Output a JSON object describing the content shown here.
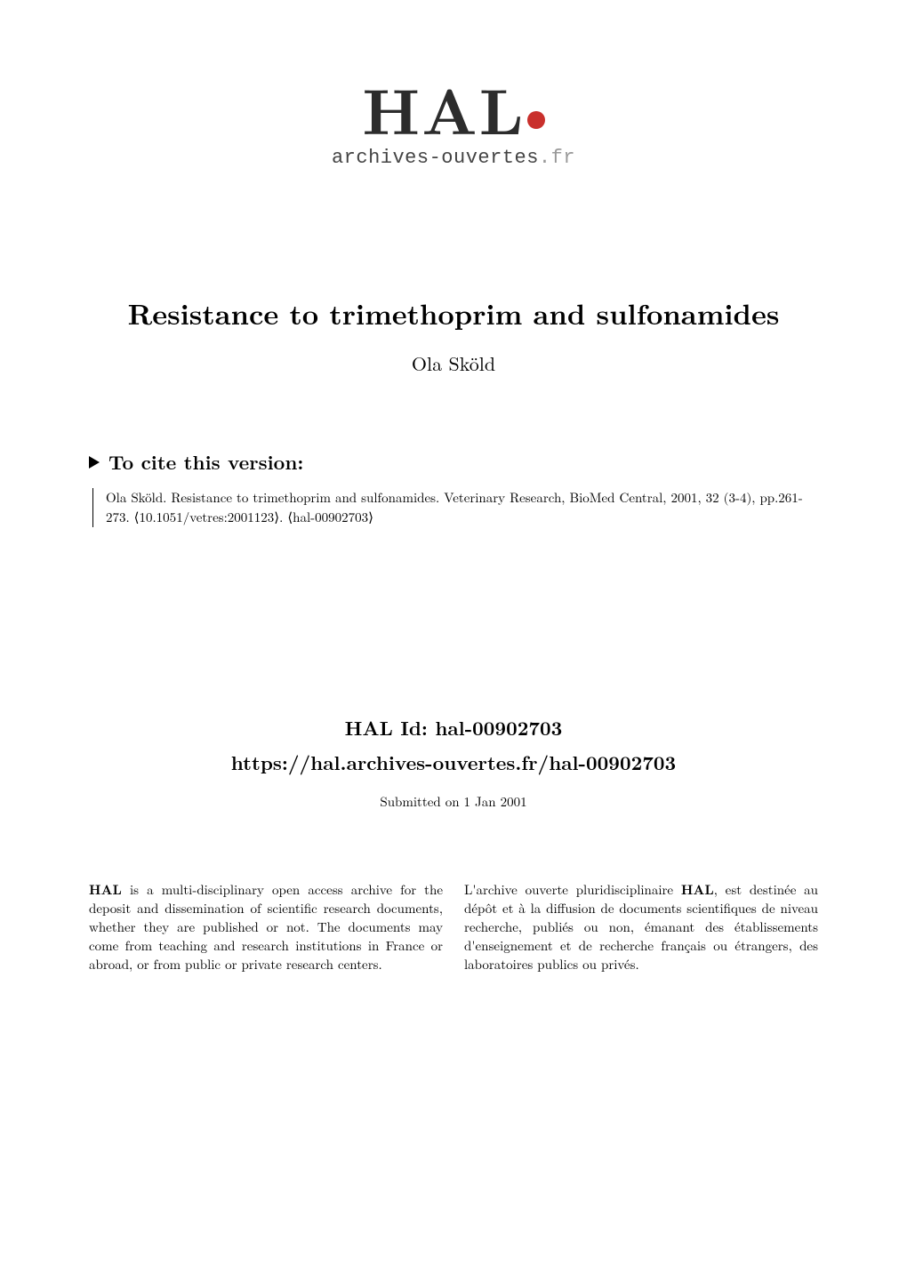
{
  "logo": {
    "text": "HAL",
    "subtitle_main": "archives-ouvertes",
    "subtitle_suffix": ".fr"
  },
  "paper": {
    "title": "Resistance to trimethoprim and sulfonamides",
    "author": "Ola Sköld"
  },
  "cite": {
    "header": "To cite this version:",
    "text": "Ola Sköld. Resistance to trimethoprim and sulfonamides. Veterinary Research, BioMed Central, 2001, 32 (3-4), pp.261-273. ⟨10.1051/vetres:2001123⟩. ⟨hal-00902703⟩"
  },
  "hal": {
    "id_label": "HAL Id: hal-00902703",
    "url": "https://hal.archives-ouvertes.fr/hal-00902703",
    "submitted": "Submitted on 1 Jan 2001"
  },
  "columns": {
    "left_bold": "HAL",
    "left_rest": " is a multi-disciplinary open access archive for the deposit and dissemination of scientific research documents, whether they are published or not. The documents may come from teaching and research institutions in France or abroad, or from public or private research centers.",
    "right_pre": "L'archive ouverte pluridisciplinaire ",
    "right_bold": "HAL",
    "right_post": ", est destinée au dépôt et à la diffusion de documents scientifiques de niveau recherche, publiés ou non, émanant des établissements d'enseignement et de recherche français ou étrangers, des laboratoires publics ou privés."
  }
}
